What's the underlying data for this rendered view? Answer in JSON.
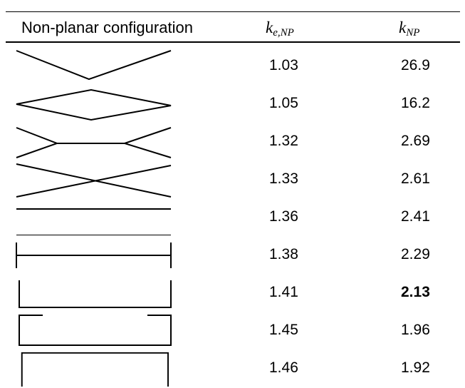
{
  "table": {
    "header": {
      "config": "Non-planar configuration",
      "ke_main": "k",
      "ke_sub": "e,NP",
      "knp_main": "k",
      "knp_sub": "NP"
    },
    "rows": [
      {
        "shape": "v-shape-icon",
        "ke": "1.03",
        "knp": "26.9",
        "bold": false
      },
      {
        "shape": "diamond-icon",
        "ke": "1.05",
        "knp": "16.2",
        "bold": false
      },
      {
        "shape": "bowtie-flat-icon",
        "ke": "1.32",
        "knp": "2.69",
        "bold": false
      },
      {
        "shape": "x-cross-icon",
        "ke": "1.33",
        "knp": "2.61",
        "bold": false
      },
      {
        "shape": "parallel-lines-icon",
        "ke": "1.36",
        "knp": "2.41",
        "bold": false
      },
      {
        "shape": "h-bar-icon",
        "ke": "1.38",
        "knp": "2.29",
        "bold": false
      },
      {
        "shape": "u-channel-icon",
        "ke": "1.41",
        "knp": "2.13",
        "bold": true
      },
      {
        "shape": "lipped-channel-icon",
        "ke": "1.45",
        "knp": "1.96",
        "bold": false
      },
      {
        "shape": "box-open-icon",
        "ke": "1.46",
        "knp": "1.92",
        "bold": false
      }
    ]
  }
}
